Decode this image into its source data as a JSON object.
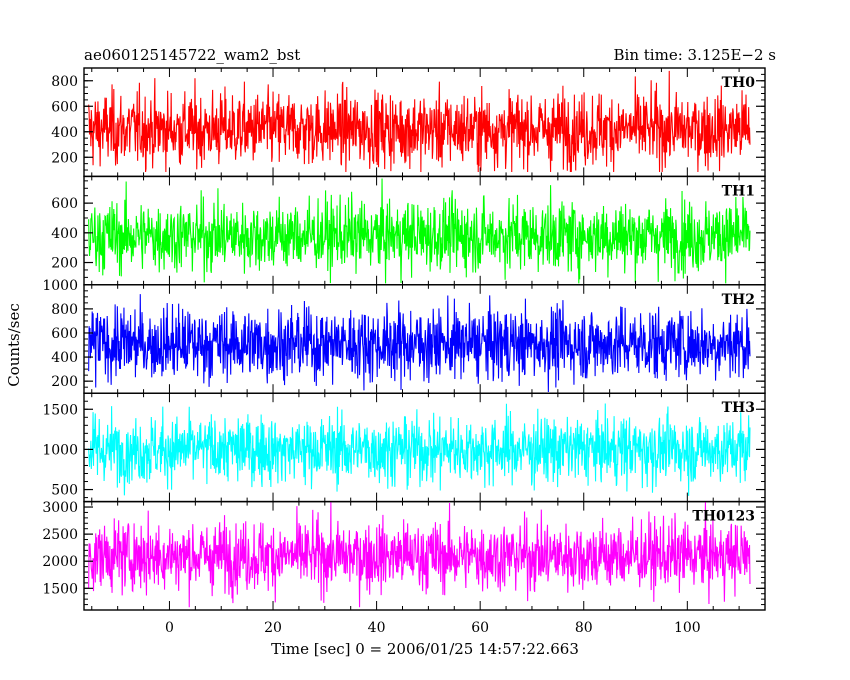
{
  "chart_data": {
    "type": "line",
    "title_left": "ae060125145722_wam2_bst",
    "title_right": "Bin time: 3.125E−2 s",
    "xlabel": "Time [sec] 0 = 2006/01/25 14:57:22.663",
    "ylabel": "Counts/sec",
    "xlim": [
      -16.5,
      115
    ],
    "x_ticks": [
      0,
      20,
      40,
      60,
      80,
      100
    ],
    "x_tick_labels": [
      "0",
      "20",
      "40",
      "60",
      "80",
      "100"
    ],
    "data_x_range": [
      -15.6,
      112.1
    ],
    "bin_time": 0.03125,
    "grid": false,
    "panels": [
      {
        "name": "TH0",
        "color": "#ff0000",
        "ylim": [
          50,
          900
        ],
        "y_ticks": [
          200,
          400,
          600,
          800
        ],
        "y_tick_labels": [
          "200",
          "400",
          "600",
          "800"
        ],
        "y_minor_step": 50,
        "mean": 420,
        "sigma": 145,
        "min": 85,
        "max": 900
      },
      {
        "name": "TH1",
        "color": "#00ff00",
        "ylim": [
          50,
          780
        ],
        "y_ticks": [
          200,
          400,
          600
        ],
        "y_tick_labels": [
          "200",
          "400",
          "600"
        ],
        "y_minor_step": 50,
        "mean": 380,
        "sigma": 120,
        "min": 60,
        "max": 780
      },
      {
        "name": "TH2",
        "color": "#0000ff",
        "ylim": [
          100,
          1000
        ],
        "y_ticks": [
          200,
          400,
          600,
          800,
          1000
        ],
        "y_tick_labels": [
          "200",
          "400",
          "600",
          "800",
          "1000"
        ],
        "y_minor_step": 50,
        "mean": 510,
        "sigma": 150,
        "min": 110,
        "max": 1000
      },
      {
        "name": "TH3",
        "color": "#00ffff",
        "ylim": [
          350,
          1700
        ],
        "y_ticks": [
          500,
          1000,
          1500
        ],
        "y_tick_labels": [
          "500",
          "1000",
          "1500"
        ],
        "y_minor_step": 100,
        "mean": 1000,
        "sigma": 210,
        "min": 360,
        "max": 1700
      },
      {
        "name": "TH0123",
        "color": "#ff00ff",
        "ylim": [
          1100,
          3100
        ],
        "y_ticks": [
          1500,
          2000,
          2500,
          3000
        ],
        "y_tick_labels": [
          "1500",
          "2000",
          "2500",
          "3000"
        ],
        "y_minor_step": 100,
        "mean": 2100,
        "sigma": 320,
        "min": 1150,
        "max": 3100
      }
    ]
  }
}
